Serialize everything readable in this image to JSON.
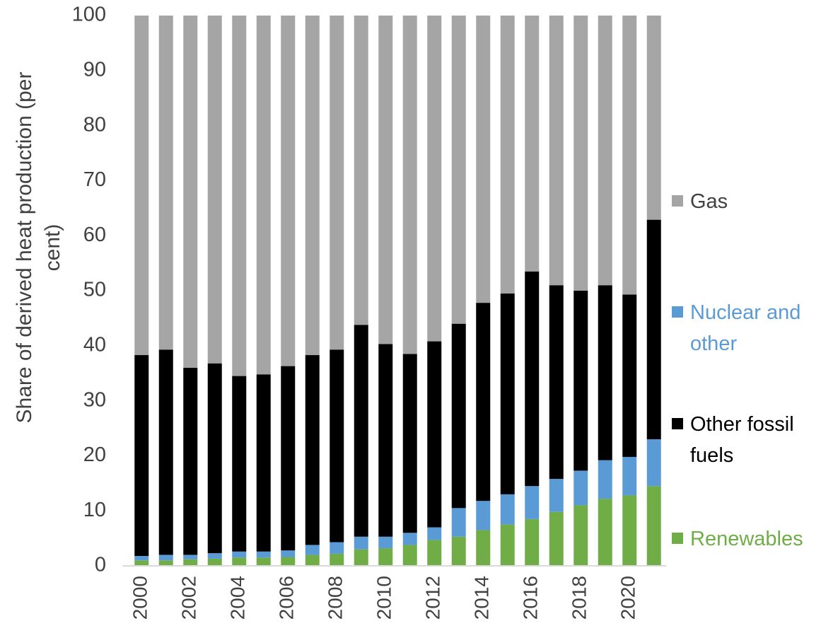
{
  "chart_data": {
    "type": "stacked_bar",
    "ylabel": "Share of derived heat production (per cent)",
    "categories": [
      "2000",
      null,
      "2002",
      null,
      "2004",
      null,
      "2006",
      null,
      "2008",
      null,
      "2010",
      null,
      "2012",
      null,
      "2014",
      null,
      "2016",
      null,
      "2018",
      null,
      "2020",
      null
    ],
    "series": [
      {
        "name": "Renewables",
        "color": "#70ad47",
        "values": [
          1,
          1,
          1.2,
          1.3,
          1.5,
          1.5,
          1.6,
          2,
          2.2,
          3,
          3.2,
          3.8,
          4.7,
          5.3,
          6.5,
          7.5,
          8.5,
          9.8,
          11,
          12.2,
          12.8,
          14.5
        ]
      },
      {
        "name": "Nuclear and other",
        "color": "#5b9bd5",
        "values": [
          0.8,
          1,
          0.8,
          1,
          1.1,
          1.1,
          1.2,
          1.8,
          2.1,
          2.3,
          2.1,
          2.2,
          2.3,
          5.2,
          5.3,
          5.5,
          6,
          6,
          6.3,
          7,
          7,
          8.5
        ]
      },
      {
        "name": "Other fossil fuels",
        "color": "#000000",
        "values": [
          36.5,
          37.3,
          34,
          34.5,
          31.9,
          32.2,
          33.5,
          34.5,
          35,
          38.5,
          35,
          32.5,
          33.8,
          33.5,
          36,
          36.5,
          39,
          35.2,
          32.7,
          31.8,
          29.5,
          39.9
        ]
      },
      {
        "name": "Gas",
        "color": "#a5a5a5",
        "values": [
          61.7,
          60.7,
          64,
          63.2,
          65.5,
          65.2,
          63.7,
          61.7,
          60.7,
          56.2,
          59.7,
          61.5,
          59.2,
          56,
          52.2,
          50.5,
          46.5,
          49,
          50,
          49,
          50.7,
          37.1
        ]
      }
    ],
    "ylim": [
      0,
      100
    ],
    "yticks": [
      0,
      10,
      20,
      30,
      40,
      50,
      60,
      70,
      80,
      90,
      100
    ],
    "legend": "right"
  }
}
